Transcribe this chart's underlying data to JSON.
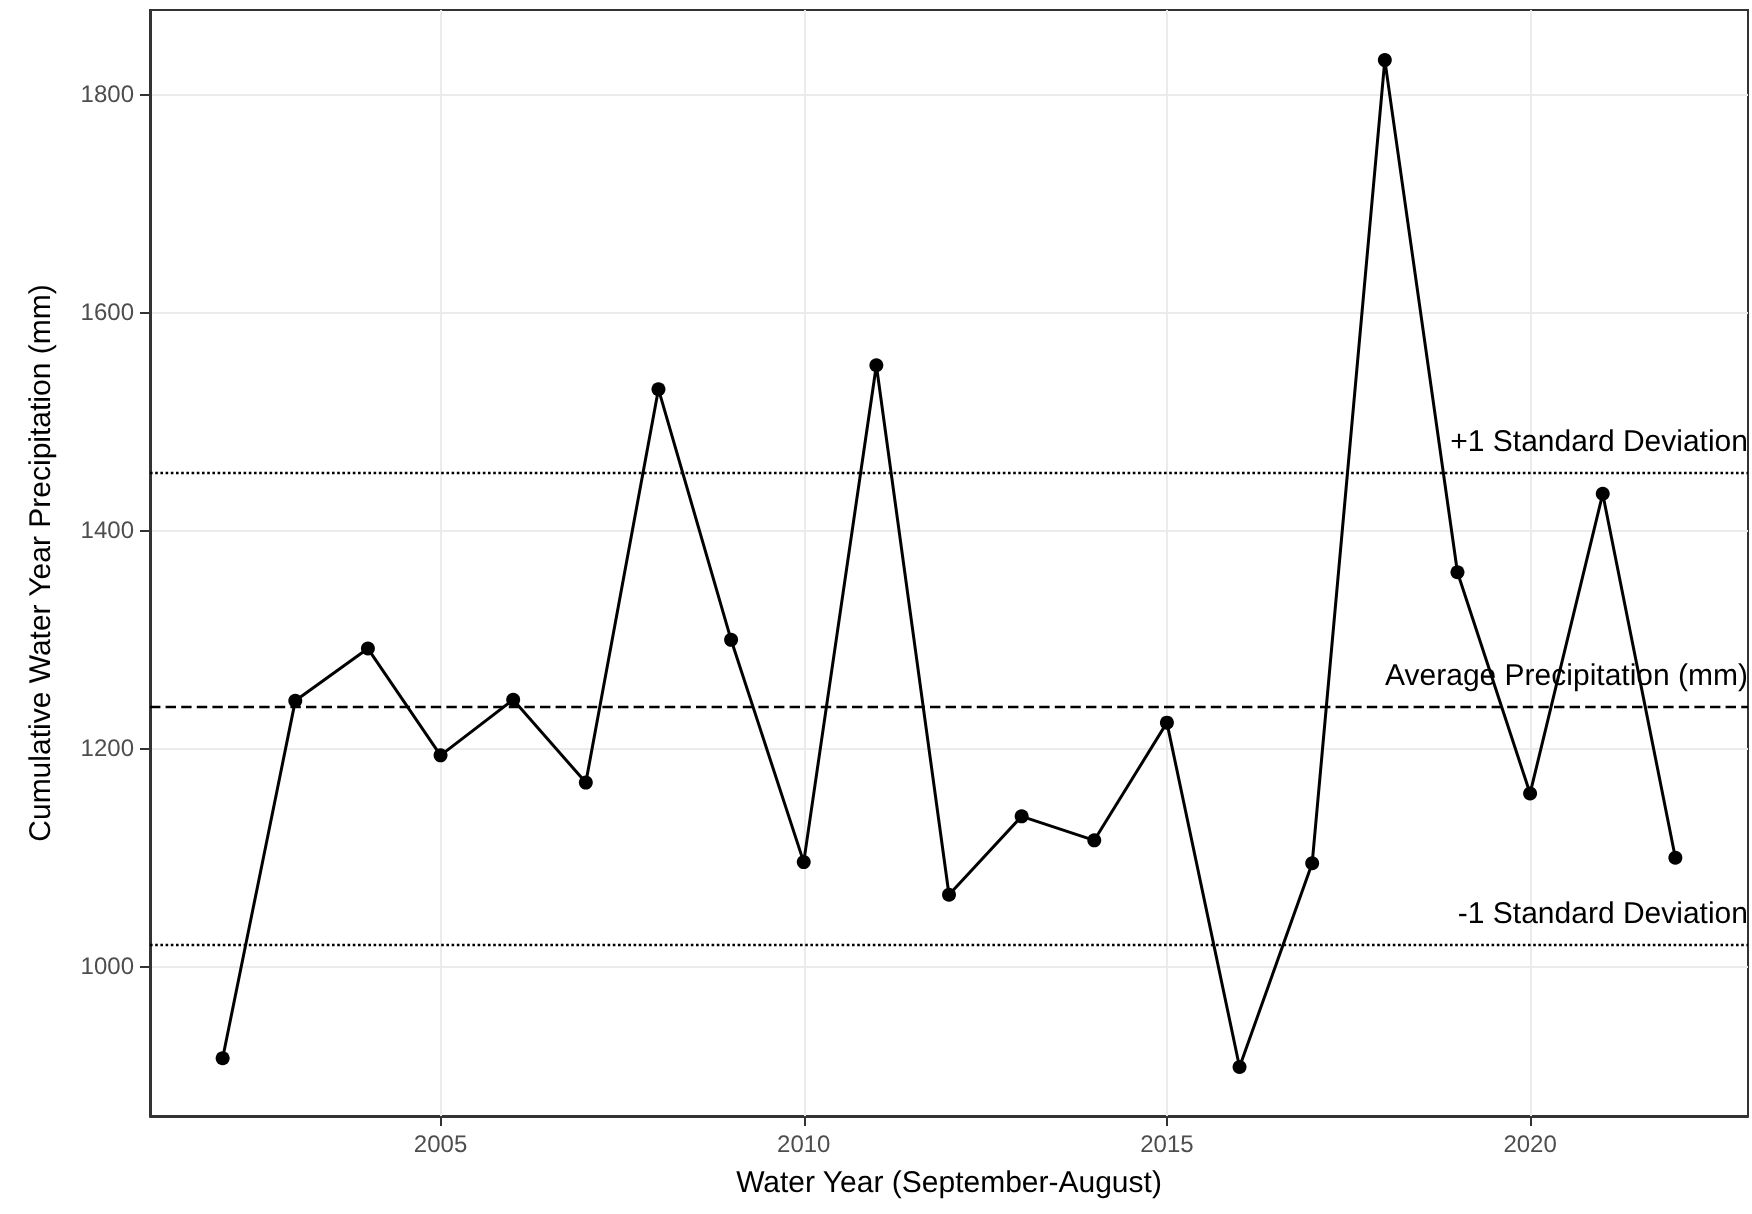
{
  "chart_data": {
    "type": "line",
    "xlabel": "Water Year (September-August)",
    "ylabel": "Cumulative Water Year Precipitation (mm)",
    "x": [
      2002,
      2003,
      2004,
      2005,
      2006,
      2007,
      2008,
      2009,
      2010,
      2011,
      2012,
      2013,
      2014,
      2015,
      2016,
      2017,
      2018,
      2019,
      2020,
      2021,
      2022
    ],
    "series": [
      {
        "color": "#000000",
        "values": [
          915,
          1243,
          1291,
          1193,
          1244,
          1168,
          1529,
          1299,
          1095,
          1551,
          1065,
          1137,
          1115,
          1223,
          907,
          1094,
          1831,
          1361,
          1158,
          1433,
          1099
        ]
      }
    ],
    "xlim": [
      2001,
      2023
    ],
    "xticks": [
      2005,
      2010,
      2015,
      2020
    ],
    "ylim": [
      862,
      1877
    ],
    "yticks": [
      1000,
      1200,
      1400,
      1600,
      1800
    ],
    "ref_lines": [
      {
        "axis": "y",
        "value": 1452,
        "label": "+1 Standard Deviation",
        "line_style": "dotted"
      },
      {
        "axis": "y",
        "value": 1237,
        "label": "Average Precipitation (mm)",
        "line_style": "dashed"
      },
      {
        "axis": "y",
        "value": 1019,
        "label": "-1 Standard Deviation",
        "line_style": "dotted"
      }
    ],
    "grid": true,
    "marker": "circle",
    "line_style": "solid"
  }
}
